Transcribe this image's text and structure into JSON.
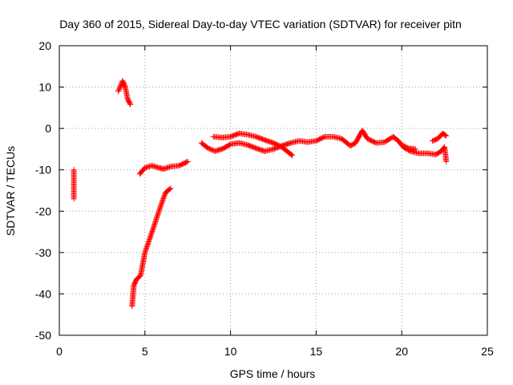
{
  "chart_data": {
    "type": "scatter",
    "title": "Day 360 of 2015, Sidereal Day-to-day VTEC variation (SDTVAR) for receiver pitn",
    "xlabel": "GPS time / hours",
    "ylabel": "SDTVAR / TECUs",
    "xlim": [
      0,
      25
    ],
    "ylim": [
      -50,
      20
    ],
    "xticks": [
      0,
      5,
      10,
      15,
      20,
      25
    ],
    "yticks": [
      -50,
      -40,
      -30,
      -20,
      -10,
      0,
      10,
      20
    ],
    "grid": true,
    "marker": "+",
    "colors": {
      "series": "#ff0000",
      "grid": "#a0a0a0",
      "axis": "#000000"
    },
    "series": [
      {
        "name": "SDTVAR",
        "segments": [
          [
            [
              0.85,
              -10.0
            ],
            [
              0.85,
              -17.0
            ]
          ],
          [
            [
              3.45,
              9.0
            ],
            [
              3.7,
              11.5
            ],
            [
              3.85,
              10.0
            ],
            [
              4.0,
              7.0
            ],
            [
              4.15,
              5.8
            ]
          ],
          [
            [
              4.25,
              -43.0
            ],
            [
              4.35,
              -38.0
            ],
            [
              4.5,
              -36.5
            ],
            [
              4.75,
              -35.5
            ],
            [
              5.0,
              -30.0
            ],
            [
              5.5,
              -24.0
            ],
            [
              5.9,
              -19.0
            ],
            [
              6.2,
              -15.5
            ],
            [
              6.5,
              -14.5
            ]
          ],
          [
            [
              4.7,
              -11.0
            ],
            [
              5.0,
              -9.5
            ],
            [
              5.4,
              -9.0
            ],
            [
              5.8,
              -9.5
            ],
            [
              6.1,
              -9.8
            ],
            [
              6.5,
              -9.2
            ],
            [
              7.0,
              -9.0
            ],
            [
              7.5,
              -8.0
            ]
          ],
          [
            [
              8.3,
              -3.5
            ],
            [
              8.7,
              -4.8
            ],
            [
              9.1,
              -5.5
            ],
            [
              9.6,
              -4.8
            ],
            [
              10.0,
              -3.8
            ],
            [
              10.5,
              -3.5
            ],
            [
              11.0,
              -4.0
            ],
            [
              11.5,
              -4.8
            ],
            [
              12.0,
              -5.5
            ],
            [
              12.5,
              -5.0
            ],
            [
              13.0,
              -4.2
            ],
            [
              13.5,
              -3.5
            ],
            [
              14.0,
              -3.0
            ],
            [
              14.5,
              -3.3
            ],
            [
              15.0,
              -3.0
            ],
            [
              15.5,
              -2.0
            ],
            [
              16.0,
              -2.0
            ],
            [
              16.5,
              -2.5
            ],
            [
              17.0,
              -4.2
            ],
            [
              17.3,
              -3.5
            ],
            [
              17.7,
              -0.5
            ],
            [
              18.0,
              -2.5
            ],
            [
              18.5,
              -3.5
            ],
            [
              19.0,
              -3.3
            ],
            [
              19.5,
              -2.0
            ],
            [
              19.8,
              -3.0
            ],
            [
              20.1,
              -4.5
            ],
            [
              20.5,
              -5.5
            ],
            [
              21.0,
              -6.0
            ],
            [
              21.5,
              -6.0
            ],
            [
              22.0,
              -6.3
            ],
            [
              22.3,
              -5.5
            ],
            [
              22.5,
              -4.5
            ],
            [
              22.6,
              -8.0
            ]
          ],
          [
            [
              9.0,
              -2.0
            ],
            [
              9.5,
              -2.2
            ],
            [
              10.0,
              -2.0
            ],
            [
              10.5,
              -1.2
            ],
            [
              11.0,
              -1.5
            ],
            [
              11.5,
              -2.0
            ],
            [
              12.0,
              -2.8
            ],
            [
              12.5,
              -3.5
            ],
            [
              13.0,
              -4.5
            ],
            [
              13.3,
              -5.5
            ],
            [
              13.6,
              -6.5
            ]
          ],
          [
            [
              20.0,
              -4.0
            ],
            [
              20.4,
              -4.8
            ],
            [
              20.8,
              -5.0
            ]
          ],
          [
            [
              21.8,
              -3.0
            ],
            [
              22.1,
              -2.5
            ],
            [
              22.4,
              -1.2
            ],
            [
              22.6,
              -1.8
            ]
          ]
        ]
      }
    ]
  }
}
